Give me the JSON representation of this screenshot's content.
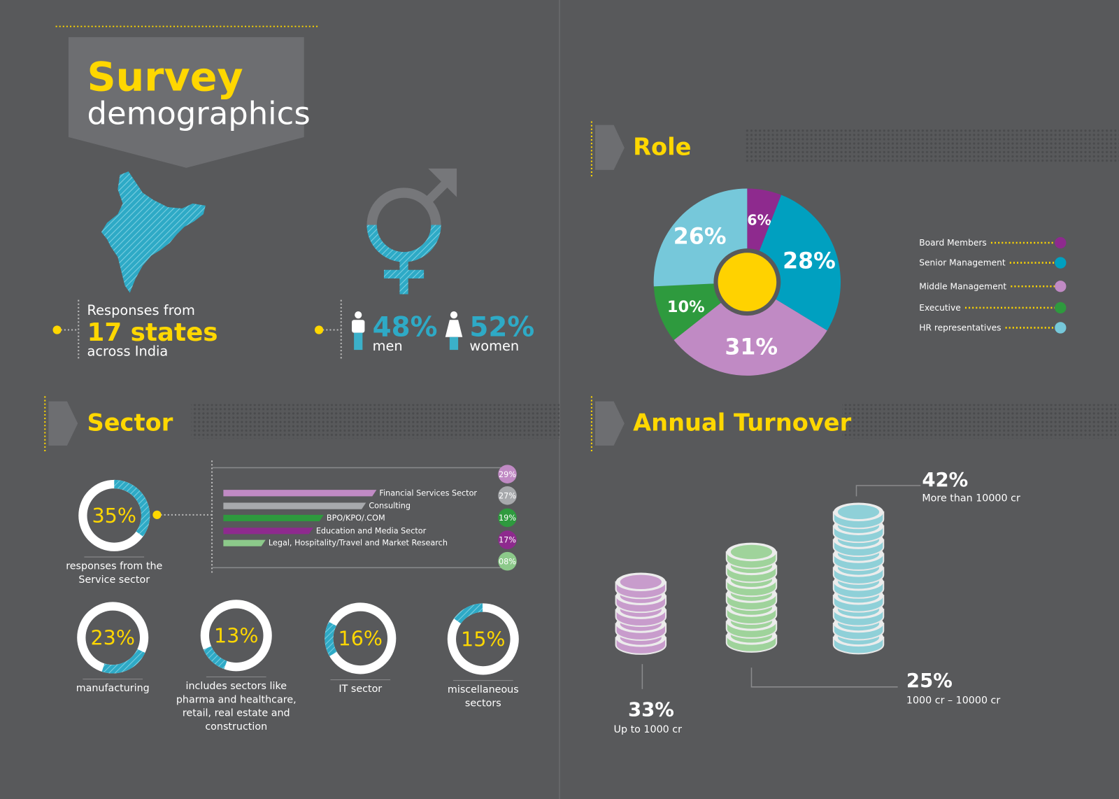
{
  "header": {
    "title": "Survey",
    "subtitle": "demographics"
  },
  "states": {
    "line1": "Responses from",
    "highlight": "17 states",
    "line2": "across India"
  },
  "gender": {
    "men_value": "48%",
    "men_label": "men",
    "women_value": "52%",
    "women_label": "women"
  },
  "chart_data": [
    {
      "type": "pie",
      "title": "Role",
      "categories": [
        "Board Members",
        "Senior Management",
        "Middle Management",
        "Executive",
        "HR representatives"
      ],
      "values": [
        6,
        28,
        31,
        10,
        26
      ],
      "value_labels": [
        "6%",
        "28%",
        "31%",
        "10%",
        "26%"
      ],
      "colors": [
        "#8e2a8e",
        "#00a0c0",
        "#c08ac4",
        "#2e9a3e",
        "#76c8da"
      ]
    },
    {
      "type": "bar",
      "title": "Sector",
      "categories": [
        "Financial Services Sector",
        "Consulting",
        "BPO/KPO/.COM",
        "Education and Media Sector",
        "Legal, Hospitality/Travel and Market Research"
      ],
      "values": [
        29,
        27,
        19,
        17,
        8
      ],
      "value_labels": [
        "29%",
        "27%",
        "19%",
        "17%",
        "08%"
      ],
      "colors": [
        "#c08ac4",
        "#a7a9ac",
        "#2e9a3e",
        "#8e2a8e",
        "#8cc98a"
      ]
    },
    {
      "type": "donut",
      "categories": [
        "responses from the Service sector",
        "manufacturing",
        "includes sectors like pharma and healthcare, retail, real estate and construction",
        "IT sector",
        "miscellaneous sectors"
      ],
      "values": [
        35,
        23,
        13,
        16,
        15
      ],
      "value_labels": [
        "35%",
        "23%",
        "13%",
        "16%",
        "15%"
      ]
    },
    {
      "type": "coins",
      "title": "Annual Turnover",
      "categories": [
        "Up to 1000 cr",
        "1000 cr – 10000 cr",
        "More than 10000 cr"
      ],
      "values": [
        33,
        25,
        42
      ],
      "value_labels": [
        "33%",
        "25%",
        "42%"
      ],
      "colors": [
        "#c89ccc",
        "#9fd39b",
        "#8fd0d8"
      ]
    }
  ]
}
